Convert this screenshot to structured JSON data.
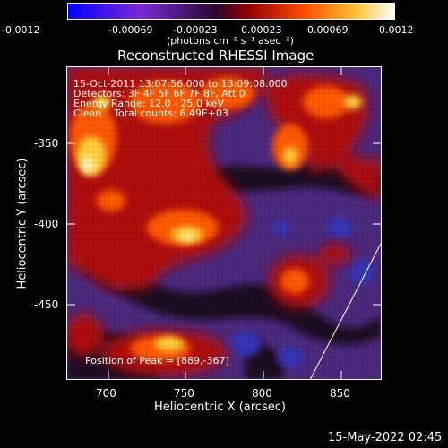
{
  "colorbar": {
    "ticks": [
      "-0.0012",
      "-0.00069",
      "-0.00023",
      "0.00023",
      "0.00069",
      "0.0012"
    ],
    "units_label": "(photons cm⁻² s⁻¹ asec⁻²)",
    "colors": [
      "#0000ff",
      "#6b2bd0",
      "#2a0a3a",
      "#b00000",
      "#ff5a00",
      "#ffd040",
      "#ffffff"
    ]
  },
  "title": "Reconstructed RHESSI Image",
  "annotations": {
    "line1": "15-Oct-2011 13:07:56.000 to 13:09:08.000",
    "line2": "Detectors: 3F 4F 5F 6F 7F 8F, Att 0",
    "line3": "Energy Range: 12.0 - 25.0 keV",
    "line4": "Clean    Total counts: 6.49E+03",
    "peak": "Position of Peak = [889,-367]"
  },
  "axes": {
    "xlabel": "Heliocentric X (arcsec)",
    "ylabel": "Heliocentric Y (arcsec)",
    "xticks": [
      "700",
      "750",
      "800",
      "850"
    ],
    "yticks": [
      "-350",
      "-400",
      "-450"
    ]
  },
  "timestamp": "15-May-2022 02:45",
  "palette": {
    "bg": "#4a2a7a",
    "dark": "#1a0a24",
    "blue": "#3a3ab0",
    "red": "#b01010",
    "orange": "#ff6a00",
    "yellow": "#ffd23a"
  }
}
